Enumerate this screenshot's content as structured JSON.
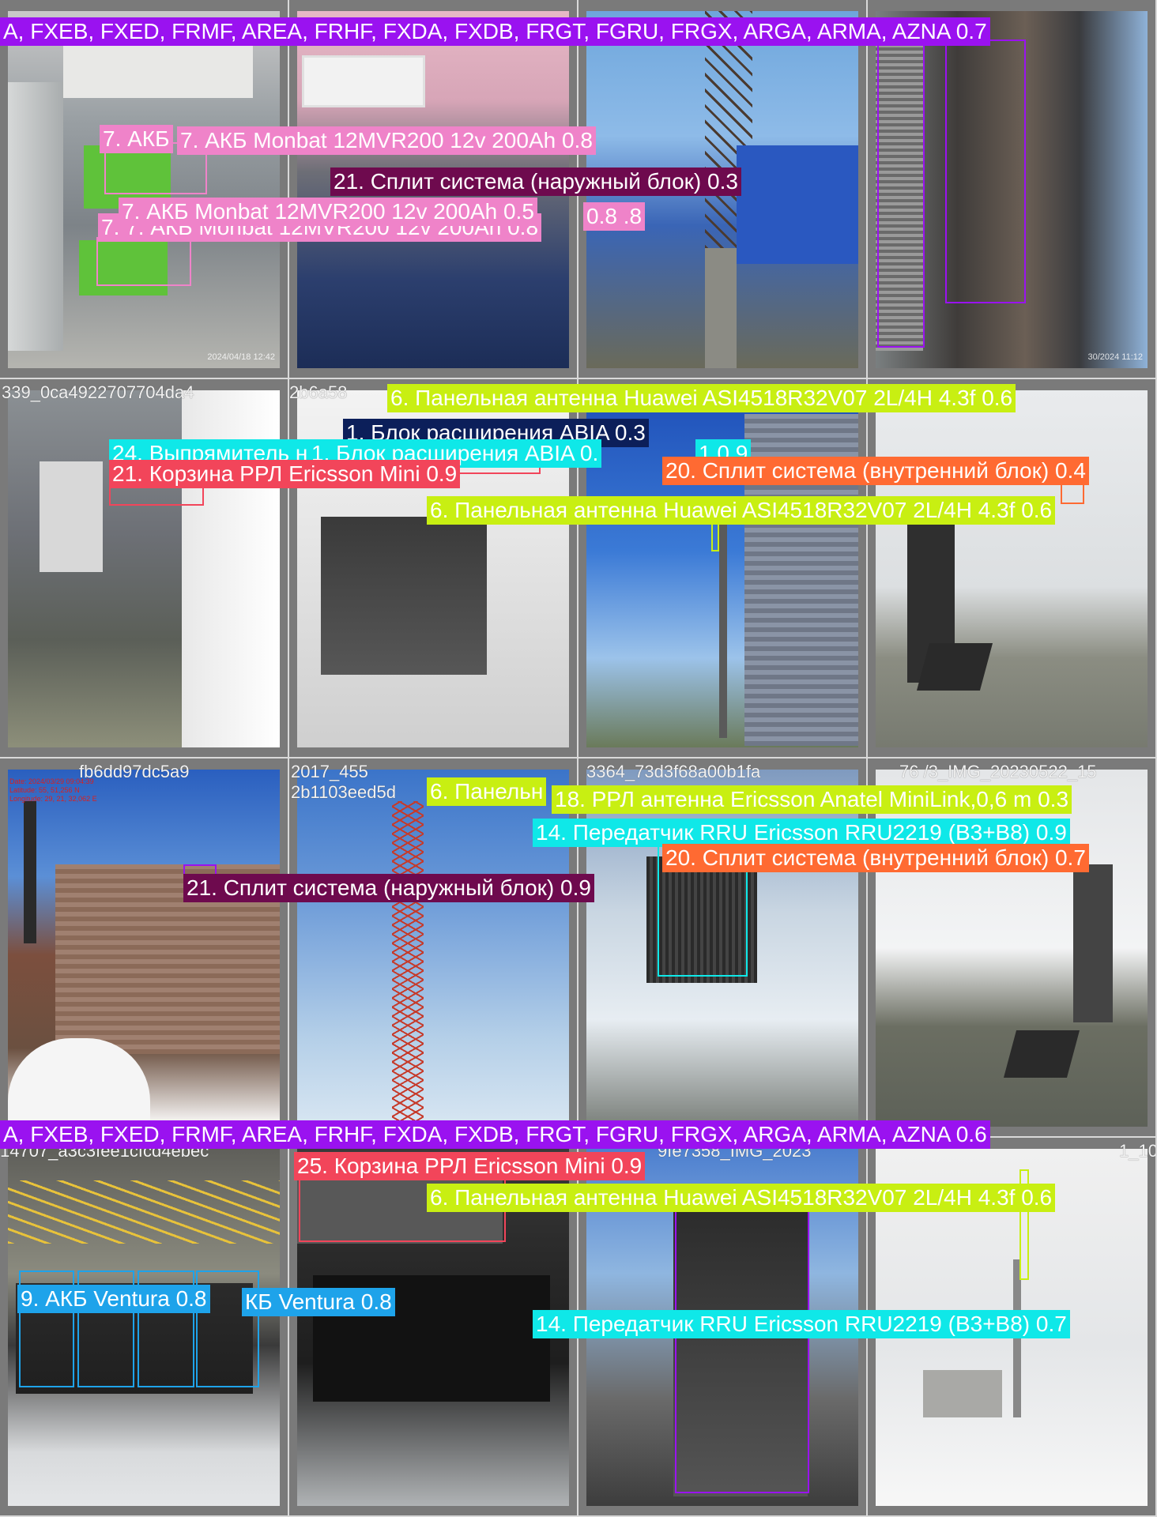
{
  "filenames": {
    "r2c1": "339_0ca4922707704da4",
    "r2c2": "2b6a58",
    "r3c1": "fb6dd97dc5a9",
    "r3c2": "2017_455",
    "r3c2b": "2b1103eed5d",
    "r3c3": "3364_73d3f68a00b1fa",
    "r3c4": "76 /3_IMG_20230522_15",
    "r4c1": "14707_a3c3fee1cfcd4ebec",
    "r4c3": "9fe7358_IMG_2023",
    "r4c4": "1_10"
  },
  "stamps": {
    "r1c1": "2024/04/18 12:42",
    "r1c4": "30/2024 11:12"
  },
  "gps": {
    "r3c1_line1": "Date: 2024/03/29 09:04:39",
    "r3c1_line2": "Latitude: 55, 51,256 N",
    "r3c1_line3": "Longitude: 29, 21, 32,062 E"
  },
  "labels": {
    "top_band": "A, FXEB, FXED, FRMF, AREA, FRHF, FXDA, FXDB, FRGT, FGRU, FRGX, ARGA, ARMA, AZNA 0.7",
    "akb_short": "7. АКБ",
    "akb_1": "7. АКБ Monbat 12MVR200 12v 200Ah 0.8",
    "split_out_03": "21. Сплит система (наружный блок) 0.3",
    "akb_2": "7. АКБ Monbat 12MVR200 12v 200Ah 0.5",
    "akb_2_tail": "0.8 .8",
    "akb_3": "7. 7. АКБ Monbat 12MVR200 12v 200Ah 0.8",
    "panel_ant_top": "6. Панельная антенна Huawei ASI4518R32V07 2L/4H 4.3f 0.6",
    "abia": "1. Блок расширения ABIA 0.3",
    "rectifier": "24. Выпрямитель н",
    "abia_ghost": "1. Блок расширения ABIA 0.",
    "ghost_tail": "1.0.9",
    "rrl_basket_09": "21. Корзина РРЛ Ericsson Mini 0.9",
    "split_in_04": "20. Сплит система (внутренний блок) 0.4",
    "panel_ant_mid": "6. Панельная антенна Huawei ASI4518R32V07 2L/4H 4.3f 0.6",
    "panel_short": "6. Панельн",
    "rrl_ant": "18. РРЛ антенна Ericsson Anatel MiniLink,0,6 m 0.3",
    "rru_09": "14. Передатчик RRU Ericsson RRU2219 (B3+B8) 0.9",
    "split_in_07": "20. Сплит система (внутренний блок) 0.7",
    "split_out_09": "21. Сплит система (наружный блок) 0.9",
    "bottom_band": "A, FXEB, FXED, FRMF, AREA, FRHF, FXDA, FXDB, FRGT, FGRU, FRGX, ARGA, ARMA, AZNA 0.6",
    "rrl_basket_25": "25. Корзина РРЛ Ericsson Mini 0.9",
    "panel_ant_bottom": "6. Панельная антенна Huawei ASI4518R32V07 2L/4H 4.3f 0.6",
    "ventura_1": "9. АКБ Ventura 0.8",
    "ventura_2": "КБ Ventura 0.8",
    "rru_07": "14. Передатчик RRU Ericsson RRU2219 (B3+B8) 0.7"
  },
  "colors": {
    "purple": "#9a12f0",
    "pink": "#ef83c9",
    "maroon": "#6e0a4e",
    "lime": "#c8ef12",
    "navy": "#0c1f5a",
    "cyan": "#0fe8e8",
    "red": "#f2455a",
    "orange": "#ff6a32",
    "blue": "#1ea3ea"
  }
}
